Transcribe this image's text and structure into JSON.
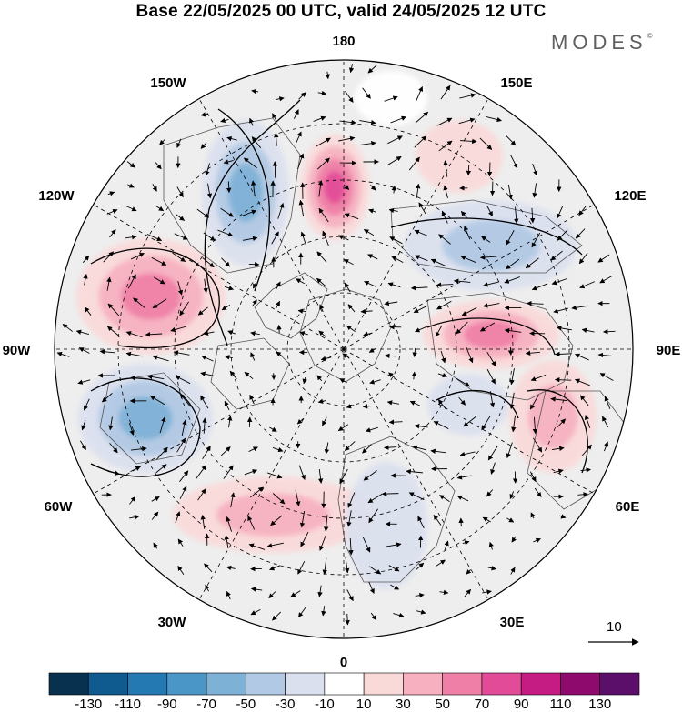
{
  "title": "Base 22/05/2025 00 UTC, valid 24/05/2025 12 UTC",
  "brand": "MODES",
  "brand_mark": "©",
  "longitude_labels": [
    "180",
    "150E",
    "120E",
    "90E",
    "60E",
    "30E",
    "0",
    "30W",
    "60W",
    "90W",
    "120W",
    "150W"
  ],
  "vector_reference": "10",
  "colorbar": {
    "tick_labels": [
      "-130",
      "-110",
      "-90",
      "-70",
      "-50",
      "-30",
      "-10",
      "10",
      "30",
      "50",
      "70",
      "90",
      "110",
      "130"
    ],
    "colors": [
      "#08304f",
      "#0f5a8e",
      "#2479b3",
      "#4a96c6",
      "#7eb1d6",
      "#b1c9e4",
      "#dbe0ef",
      "#ffffff",
      "#fad9d9",
      "#f6b0c0",
      "#ef7fa6",
      "#e24b97",
      "#c51c84",
      "#8e0a6d",
      "#5b0f6b"
    ]
  },
  "anomaly_centers": [
    {
      "name": "pos-bering",
      "value": 90
    },
    {
      "name": "neg-alaska",
      "value": -70
    },
    {
      "name": "pos-canada",
      "value": 70
    },
    {
      "name": "neg-labrador",
      "value": -70
    },
    {
      "name": "pos-atlantic",
      "value": 50
    },
    {
      "name": "neg-europe",
      "value": -30
    },
    {
      "name": "neg-siberia",
      "value": -50
    },
    {
      "name": "pos-siberia",
      "value": 70
    },
    {
      "name": "neg-kara",
      "value": -30
    },
    {
      "name": "pos-westsib",
      "value": 50
    },
    {
      "name": "pos-okhotsk",
      "value": 30
    },
    {
      "name": "neg-pacific",
      "value": -10
    }
  ]
}
